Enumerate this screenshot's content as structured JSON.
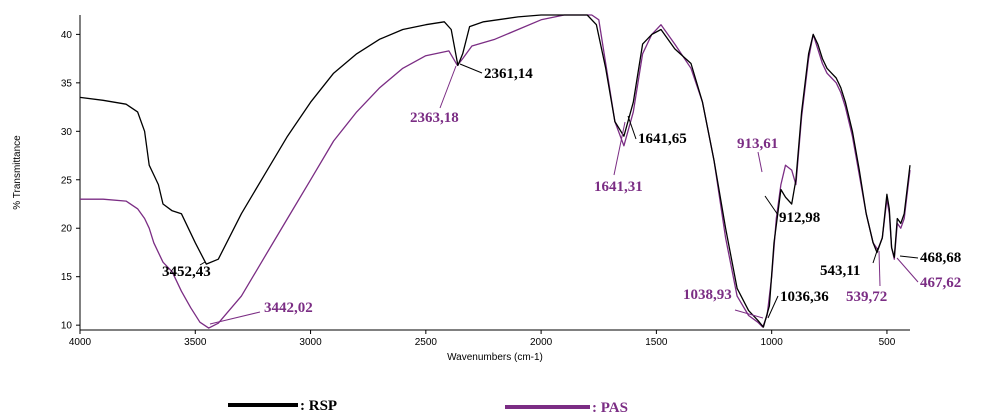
{
  "chart_data": {
    "type": "line",
    "xlabel": "Wavenumbers (cm-1)",
    "ylabel": "% Transmittance",
    "xlim": [
      4000,
      400
    ],
    "ylim": [
      9.5,
      42
    ],
    "x_ticks": [
      "4000",
      "3500",
      "3000",
      "2500",
      "2000",
      "1500",
      "1000",
      "500"
    ],
    "y_ticks": [
      "10",
      "15",
      "20",
      "25",
      "30",
      "35",
      "40"
    ],
    "colors": {
      "RSP": "#000000",
      "PAS": "#7b2d84"
    },
    "series": [
      {
        "name": "RSP",
        "points": [
          [
            4000,
            33.5
          ],
          [
            3900,
            33.2
          ],
          [
            3800,
            32.8
          ],
          [
            3750,
            32.0
          ],
          [
            3720,
            30.0
          ],
          [
            3700,
            26.5
          ],
          [
            3680,
            25.5
          ],
          [
            3660,
            24.5
          ],
          [
            3640,
            22.5
          ],
          [
            3600,
            21.8
          ],
          [
            3560,
            21.5
          ],
          [
            3500,
            18.5
          ],
          [
            3452,
            16.3
          ],
          [
            3400,
            16.8
          ],
          [
            3300,
            21.5
          ],
          [
            3200,
            25.5
          ],
          [
            3100,
            29.5
          ],
          [
            3000,
            33.0
          ],
          [
            2900,
            36.0
          ],
          [
            2800,
            38.0
          ],
          [
            2700,
            39.5
          ],
          [
            2600,
            40.5
          ],
          [
            2500,
            41.0
          ],
          [
            2420,
            41.3
          ],
          [
            2390,
            40.5
          ],
          [
            2361,
            36.8
          ],
          [
            2340,
            38.0
          ],
          [
            2310,
            40.8
          ],
          [
            2250,
            41.3
          ],
          [
            2100,
            41.8
          ],
          [
            2000,
            42.0
          ],
          [
            1900,
            42.0
          ],
          [
            1800,
            42.0
          ],
          [
            1760,
            41.0
          ],
          [
            1720,
            36.5
          ],
          [
            1680,
            31.0
          ],
          [
            1641,
            29.5
          ],
          [
            1600,
            33.0
          ],
          [
            1560,
            39.0
          ],
          [
            1520,
            40.0
          ],
          [
            1480,
            40.5
          ],
          [
            1420,
            38.5
          ],
          [
            1350,
            37.0
          ],
          [
            1300,
            33.0
          ],
          [
            1250,
            27.0
          ],
          [
            1200,
            20.0
          ],
          [
            1150,
            13.8
          ],
          [
            1100,
            11.5
          ],
          [
            1060,
            10.5
          ],
          [
            1036,
            9.8
          ],
          [
            1010,
            12.0
          ],
          [
            990,
            18.5
          ],
          [
            960,
            24.0
          ],
          [
            940,
            23.2
          ],
          [
            913,
            22.5
          ],
          [
            895,
            25.0
          ],
          [
            870,
            32.0
          ],
          [
            840,
            38.0
          ],
          [
            820,
            40.0
          ],
          [
            800,
            39.0
          ],
          [
            780,
            37.5
          ],
          [
            760,
            36.5
          ],
          [
            740,
            36.0
          ],
          [
            720,
            35.5
          ],
          [
            700,
            34.5
          ],
          [
            680,
            33.0
          ],
          [
            650,
            30.0
          ],
          [
            620,
            26.0
          ],
          [
            590,
            21.5
          ],
          [
            560,
            18.5
          ],
          [
            543,
            17.5
          ],
          [
            520,
            19.0
          ],
          [
            500,
            23.5
          ],
          [
            490,
            22.0
          ],
          [
            480,
            18.0
          ],
          [
            468,
            17.0
          ],
          [
            455,
            21.0
          ],
          [
            440,
            20.5
          ],
          [
            425,
            21.5
          ],
          [
            400,
            26.5
          ]
        ]
      },
      {
        "name": "PAS",
        "points": [
          [
            4000,
            23.0
          ],
          [
            3900,
            23.0
          ],
          [
            3800,
            22.8
          ],
          [
            3750,
            22.0
          ],
          [
            3720,
            21.0
          ],
          [
            3700,
            20.0
          ],
          [
            3680,
            18.5
          ],
          [
            3640,
            16.5
          ],
          [
            3600,
            15.5
          ],
          [
            3560,
            13.5
          ],
          [
            3520,
            11.8
          ],
          [
            3480,
            10.3
          ],
          [
            3442,
            9.7
          ],
          [
            3400,
            10.2
          ],
          [
            3300,
            13.0
          ],
          [
            3200,
            17.0
          ],
          [
            3100,
            21.0
          ],
          [
            3000,
            25.0
          ],
          [
            2900,
            29.0
          ],
          [
            2800,
            32.0
          ],
          [
            2700,
            34.5
          ],
          [
            2600,
            36.5
          ],
          [
            2500,
            37.8
          ],
          [
            2400,
            38.3
          ],
          [
            2363,
            36.8
          ],
          [
            2340,
            37.5
          ],
          [
            2300,
            38.8
          ],
          [
            2200,
            39.5
          ],
          [
            2100,
            40.5
          ],
          [
            2000,
            41.5
          ],
          [
            1900,
            42.0
          ],
          [
            1850,
            42.0
          ],
          [
            1780,
            42.0
          ],
          [
            1750,
            41.5
          ],
          [
            1720,
            37.0
          ],
          [
            1680,
            31.0
          ],
          [
            1641,
            28.5
          ],
          [
            1600,
            32.0
          ],
          [
            1560,
            38.0
          ],
          [
            1520,
            40.0
          ],
          [
            1480,
            41.0
          ],
          [
            1420,
            39.0
          ],
          [
            1350,
            36.5
          ],
          [
            1300,
            33.0
          ],
          [
            1250,
            27.0
          ],
          [
            1200,
            19.0
          ],
          [
            1150,
            13.0
          ],
          [
            1100,
            11.0
          ],
          [
            1060,
            10.3
          ],
          [
            1039,
            9.8
          ],
          [
            1020,
            11.0
          ],
          [
            1000,
            15.0
          ],
          [
            980,
            21.0
          ],
          [
            960,
            24.5
          ],
          [
            940,
            26.5
          ],
          [
            913,
            26.0
          ],
          [
            895,
            24.5
          ],
          [
            870,
            31.5
          ],
          [
            840,
            37.5
          ],
          [
            820,
            40.0
          ],
          [
            800,
            38.5
          ],
          [
            780,
            37.0
          ],
          [
            760,
            36.0
          ],
          [
            740,
            35.5
          ],
          [
            720,
            35.0
          ],
          [
            700,
            34.0
          ],
          [
            680,
            32.5
          ],
          [
            650,
            29.5
          ],
          [
            620,
            25.5
          ],
          [
            590,
            21.5
          ],
          [
            560,
            18.5
          ],
          [
            540,
            17.8
          ],
          [
            520,
            19.0
          ],
          [
            500,
            23.0
          ],
          [
            490,
            21.5
          ],
          [
            480,
            18.0
          ],
          [
            468,
            16.8
          ],
          [
            455,
            20.5
          ],
          [
            440,
            20.0
          ],
          [
            425,
            21.0
          ],
          [
            400,
            26.0
          ]
        ]
      }
    ],
    "annotations": [
      {
        "text": "3452,43",
        "series": "RSP"
      },
      {
        "text": "3442,02",
        "series": "PAS"
      },
      {
        "text": "2361,14",
        "series": "RSP"
      },
      {
        "text": "2363,18",
        "series": "PAS"
      },
      {
        "text": "1641,65",
        "series": "RSP"
      },
      {
        "text": "1641,31",
        "series": "PAS"
      },
      {
        "text": "913,61",
        "series": "PAS"
      },
      {
        "text": "912,98",
        "series": "RSP"
      },
      {
        "text": "1038,93",
        "series": "PAS"
      },
      {
        "text": "1036,36",
        "series": "RSP"
      },
      {
        "text": "543,11",
        "series": "RSP"
      },
      {
        "text": "539,72",
        "series": "PAS"
      },
      {
        "text": "468,68",
        "series": "RSP"
      },
      {
        "text": "467,62",
        "series": "PAS"
      }
    ],
    "legend": [
      {
        "label": ": RSP",
        "series": "RSP"
      },
      {
        "label": ": PAS",
        "series": "PAS"
      }
    ],
    "legend_position": "bottom",
    "grid": false
  }
}
